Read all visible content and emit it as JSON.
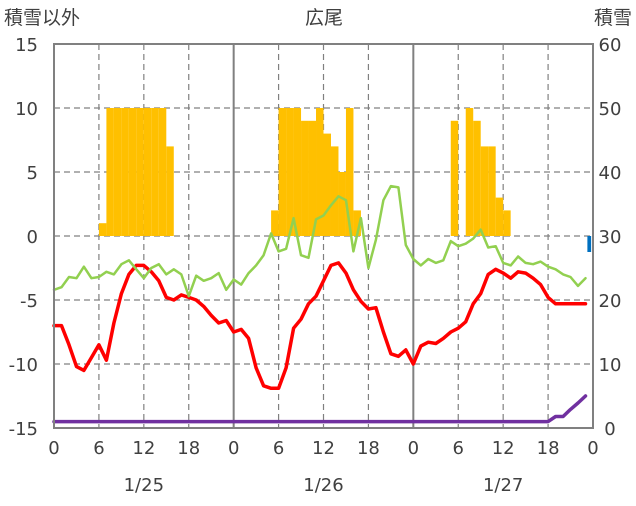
{
  "chart_data": {
    "type": "bar",
    "title": "広尾",
    "left_axis": {
      "label": "積雪以外",
      "range": [
        -15,
        15
      ],
      "ticks": [
        15,
        10,
        5,
        0,
        -5,
        -10,
        -15
      ],
      "tick_labels": [
        "15",
        "10",
        "5",
        "0",
        "-5",
        "-10",
        "-15"
      ]
    },
    "right_axis": {
      "label": "積雪",
      "range": [
        0,
        60
      ],
      "ticks": [
        60,
        50,
        40,
        30,
        20,
        10,
        0
      ],
      "tick_labels": [
        "60",
        "50",
        "40",
        "30",
        "20",
        "10",
        "0"
      ]
    },
    "x_axis": {
      "unit": "hour",
      "range": [
        0,
        72
      ],
      "ticks": [
        0,
        6,
        12,
        18,
        24,
        30,
        36,
        42,
        48,
        54,
        60,
        66,
        72
      ],
      "tick_labels": [
        "0",
        "6",
        "12",
        "18",
        "0",
        "6",
        "12",
        "18",
        "0",
        "6",
        "12",
        "18",
        "0"
      ],
      "day_labels": [
        {
          "x": 12,
          "label": "1/25"
        },
        {
          "x": 36,
          "label": "1/26"
        },
        {
          "x": 60,
          "label": "1/27"
        }
      ],
      "day_boundaries": [
        24,
        48
      ]
    },
    "grid": "dashed at 6/12/18h and 5-unit steps; solid day separators",
    "series": [
      {
        "kind": "bar",
        "color": "#ffc000",
        "axis": "left",
        "x": [
          6.5,
          7.5,
          8.5,
          9.5,
          10.5,
          11.5,
          12.5,
          13.5,
          14.5,
          15.5,
          29.5,
          30.5,
          31.5,
          32.5,
          33.5,
          34.5,
          35.5,
          36.5,
          37.5,
          38.5,
          39.5,
          40.5,
          53.5,
          54.5,
          55.5,
          56.5,
          57.5,
          58.5,
          59.5,
          60.5,
          61.5,
          62.5,
          63.5,
          64.5,
          65.5,
          66.5,
          67.5,
          68.5,
          69.5,
          70.5,
          71.5
        ],
        "values": [
          1,
          10,
          10,
          10,
          10,
          10,
          10,
          10,
          10,
          7,
          2,
          10,
          10,
          10,
          9,
          9,
          10,
          8,
          7,
          5,
          10,
          2,
          9,
          0,
          10,
          9,
          7,
          7,
          3,
          2,
          0,
          0,
          0,
          0,
          0,
          0,
          0,
          0,
          0,
          0,
          0
        ]
      },
      {
        "kind": "bar",
        "color": "#0070c0",
        "axis": "right",
        "x": [
          71.5
        ],
        "values": [
          27.5
        ]
      },
      {
        "kind": "line",
        "color": "#ff0000",
        "axis": "left",
        "x": [
          0,
          1,
          2,
          3,
          4,
          5,
          6,
          7,
          8,
          9,
          10,
          11,
          12,
          13,
          14,
          15,
          16,
          17,
          18,
          19,
          20,
          21,
          22,
          23,
          24,
          25,
          26,
          27,
          28,
          29,
          30,
          31,
          32,
          33,
          34,
          35,
          36,
          37,
          38,
          39,
          40,
          41,
          42,
          43,
          44,
          45,
          46,
          47,
          48,
          49,
          50,
          51,
          52,
          53,
          54,
          55,
          56,
          57,
          58,
          59,
          60,
          61,
          62,
          63,
          64,
          65,
          66,
          67,
          68,
          69,
          70,
          71
        ],
        "values": [
          -7,
          -7,
          -8.5,
          -10.2,
          -10.5,
          -9.5,
          -8.5,
          -9.7,
          -6.8,
          -4.5,
          -3,
          -2.3,
          -2.3,
          -2.8,
          -3.5,
          -4.8,
          -5,
          -4.6,
          -4.8,
          -5,
          -5.5,
          -6.2,
          -6.8,
          -6.6,
          -7.5,
          -7.3,
          -8,
          -10.3,
          -11.7,
          -11.9,
          -11.9,
          -10.3,
          -7.2,
          -6.5,
          -5.3,
          -4.7,
          -3.5,
          -2.3,
          -2.1,
          -2.9,
          -4.2,
          -5.1,
          -5.7,
          -5.6,
          -7.5,
          -9.2,
          -9.4,
          -8.9,
          -10,
          -8.6,
          -8.3,
          -8.4,
          -8,
          -7.5,
          -7.2,
          -6.7,
          -5.3,
          -4.5,
          -3,
          -2.6,
          -2.9,
          -3.3,
          -2.8,
          -2.9,
          -3.3,
          -3.8,
          -4.8,
          -5.3,
          -5.3,
          -5.3,
          -5.3,
          -5.3
        ]
      },
      {
        "kind": "line",
        "color": "#92d050",
        "axis": "left",
        "x": [
          0,
          1,
          2,
          3,
          4,
          5,
          6,
          7,
          8,
          9,
          10,
          11,
          12,
          13,
          14,
          15,
          16,
          17,
          18,
          19,
          20,
          21,
          22,
          23,
          24,
          25,
          26,
          27,
          28,
          29,
          30,
          31,
          32,
          33,
          34,
          35,
          36,
          37,
          38,
          39,
          40,
          41,
          42,
          43,
          44,
          45,
          46,
          47,
          48,
          49,
          50,
          51,
          52,
          53,
          54,
          55,
          56,
          57,
          58,
          59,
          60,
          61,
          62,
          63,
          64,
          65,
          66,
          67,
          68,
          69,
          70,
          71
        ],
        "values": [
          -4.2,
          -4,
          -3.2,
          -3.3,
          -2.4,
          -3.3,
          -3.2,
          -2.8,
          -3,
          -2.2,
          -1.9,
          -2.6,
          -3.3,
          -2.5,
          -2.2,
          -3,
          -2.6,
          -3,
          -4.7,
          -3.1,
          -3.5,
          -3.3,
          -2.9,
          -4.2,
          -3.4,
          -3.8,
          -2.9,
          -2.3,
          -1.5,
          0.2,
          -1.2,
          -1,
          1.4,
          -1.5,
          -1.7,
          1.3,
          1.6,
          2.4,
          3.1,
          2.8,
          -1.2,
          1.4,
          -2.5,
          -0.3,
          2.8,
          3.9,
          3.8,
          -0.7,
          -1.8,
          -2.3,
          -1.8,
          -2.1,
          -1.9,
          -0.4,
          -0.8,
          -0.6,
          -0.2,
          0.5,
          -0.9,
          -0.8,
          -2.1,
          -2.3,
          -1.6,
          -2.1,
          -2.2,
          -2,
          -2.4,
          -2.6,
          -3,
          -3.2,
          -3.9,
          -3.3
        ]
      },
      {
        "kind": "line",
        "color": "#7030a0",
        "axis": "right",
        "x": [
          0,
          66,
          67,
          68,
          69,
          70,
          71
        ],
        "values": [
          1,
          1,
          1.8,
          1.8,
          2.9,
          3.9,
          5
        ]
      }
    ]
  }
}
